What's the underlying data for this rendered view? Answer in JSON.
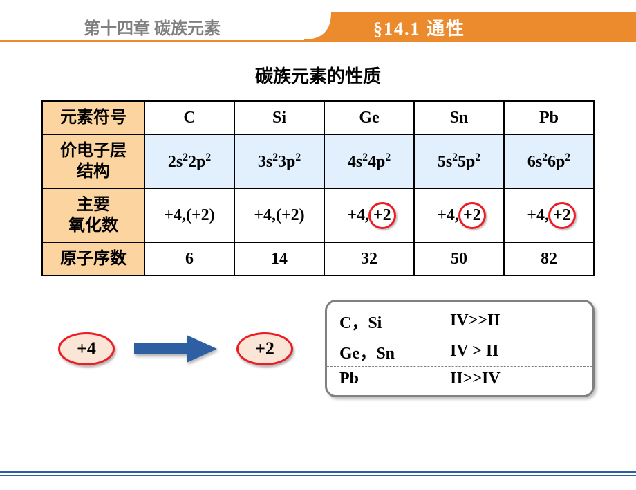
{
  "header": {
    "chapter": "第十四章  碳族元素",
    "section": "§14.1   通性"
  },
  "title": "碳族元素的性质",
  "table": {
    "row_labels": [
      "元素符号",
      "价电子层\n结构",
      "主要\n氧化数",
      "原子序数"
    ],
    "symbols": [
      "C",
      "Si",
      "Ge",
      "Sn",
      "Pb"
    ],
    "config_prefix": [
      "2",
      "3",
      "4",
      "5",
      "6"
    ],
    "oxidation": [
      {
        "plain": "+4,(+2)",
        "circled": null
      },
      {
        "plain": "+4,(+2)",
        "circled": null
      },
      {
        "plain": "+4, ",
        "circled": "+2"
      },
      {
        "plain": "+4, ",
        "circled": "+2"
      },
      {
        "plain": "+4, ",
        "circled": "+2"
      }
    ],
    "atomic_number": [
      "6",
      "14",
      "32",
      "50",
      "82"
    ]
  },
  "bottom": {
    "left_ellipse": "+4",
    "right_ellipse": "+2",
    "arrow_color": "#2e5fa3",
    "stability": [
      {
        "elements": "C，Si",
        "cmp": "IV>>II"
      },
      {
        "elements": "Ge，Sn",
        "cmp": "IV > II"
      },
      {
        "elements": "Pb",
        "cmp": "II>>IV"
      }
    ]
  },
  "colors": {
    "header_orange": "#eb8b2d",
    "head_bg": "#fbd49f",
    "blue_bg": "#e2effc",
    "circle_red": "#ed1c24",
    "ellipse_fill": "#fbe5d6",
    "footer_blue": "#2e5fa3"
  }
}
